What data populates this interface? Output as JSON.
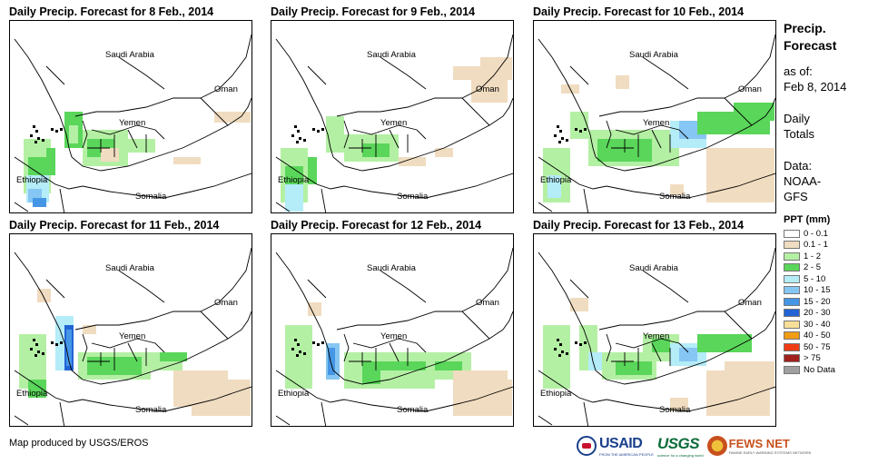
{
  "panels": [
    {
      "title": "Daily Precip. Forecast for 8 Feb., 2014"
    },
    {
      "title": "Daily Precip. Forecast for 9 Feb., 2014"
    },
    {
      "title": "Daily Precip. Forecast for 10 Feb., 2014"
    },
    {
      "title": "Daily Precip. Forecast for 11 Feb., 2014"
    },
    {
      "title": "Daily Precip. Forecast for 12 Feb., 2014"
    },
    {
      "title": "Daily Precip. Forecast for 13 Feb., 2014"
    }
  ],
  "map_labels": {
    "saudi": "Saudi Arabia",
    "oman": "Oman",
    "yemen": "Yemen",
    "ethiopia": "Ethiopia",
    "somalia": "Somalia"
  },
  "side": {
    "title_line1": "Precip.",
    "title_line2": "Forecast",
    "asof_line1": "as of:",
    "asof_line2": "Feb 8, 2014",
    "daily_line1": "Daily",
    "daily_line2": "Totals",
    "data_line1": "Data:",
    "data_line2": "NOAA-",
    "data_line3": "GFS"
  },
  "legend": {
    "title": "PPT (mm)",
    "items": [
      {
        "label": "0 - 0.1",
        "color": "#ffffff"
      },
      {
        "label": "0.1 - 1",
        "color": "#f0dcc0"
      },
      {
        "label": "1 - 2",
        "color": "#b4f0a4"
      },
      {
        "label": "2 - 5",
        "color": "#5ad65a"
      },
      {
        "label": "5 - 10",
        "color": "#b4ecf8"
      },
      {
        "label": "10 - 15",
        "color": "#86c6f4"
      },
      {
        "label": "15 - 20",
        "color": "#4696e6"
      },
      {
        "label": "20 - 30",
        "color": "#2264d4"
      },
      {
        "label": "30 - 40",
        "color": "#f8e098"
      },
      {
        "label": "40 - 50",
        "color": "#f09c14"
      },
      {
        "label": "50 - 75",
        "color": "#f03c14"
      },
      {
        "label": "> 75",
        "color": "#a0201c"
      },
      {
        "label": "No Data",
        "color": "#a0a0a0"
      }
    ]
  },
  "footer": {
    "credit": "Map produced by USGS/EROS"
  },
  "logos": {
    "usaid": "USAID",
    "usaid_sub": "FROM THE AMERICAN PEOPLE",
    "usgs": "USGS",
    "usgs_sub": "science for a changing world",
    "fews": "FEWS NET",
    "fews_sub": "FAMINE EARLY WARNING SYSTEMS NETWORK"
  }
}
